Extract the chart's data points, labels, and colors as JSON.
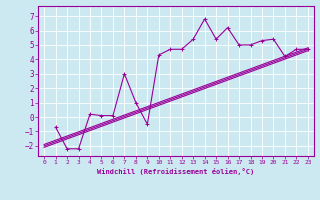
{
  "xlabel": "Windchill (Refroidissement éolien,°C)",
  "bg_color": "#cce8f0",
  "line_color": "#990099",
  "grid_color": "#ffffff",
  "xlim": [
    -0.5,
    23.5
  ],
  "ylim": [
    -2.7,
    7.7
  ],
  "xticks": [
    0,
    1,
    2,
    3,
    4,
    5,
    6,
    7,
    8,
    9,
    10,
    11,
    12,
    13,
    14,
    15,
    16,
    17,
    18,
    19,
    20,
    21,
    22,
    23
  ],
  "yticks": [
    -2,
    -1,
    0,
    1,
    2,
    3,
    4,
    5,
    6,
    7
  ],
  "line1_x": [
    1,
    2,
    3,
    4,
    5,
    6,
    7,
    8,
    9,
    10,
    11,
    12,
    13,
    14,
    15,
    16,
    17,
    18,
    19,
    20,
    21,
    22,
    23
  ],
  "line1_y": [
    -0.7,
    -2.2,
    -2.2,
    0.2,
    0.1,
    0.1,
    3.0,
    1.0,
    -0.5,
    4.3,
    4.7,
    4.7,
    5.4,
    6.8,
    5.4,
    6.2,
    5.0,
    5.0,
    5.3,
    5.4,
    4.2,
    4.7,
    4.7
  ],
  "line2_x": [
    0,
    23
  ],
  "line2_y": [
    -2.0,
    4.7
  ],
  "line3_x": [
    0,
    23
  ],
  "line3_y": [
    -2.1,
    4.6
  ],
  "line4_x": [
    0,
    23
  ],
  "line4_y": [
    -1.9,
    4.8
  ]
}
